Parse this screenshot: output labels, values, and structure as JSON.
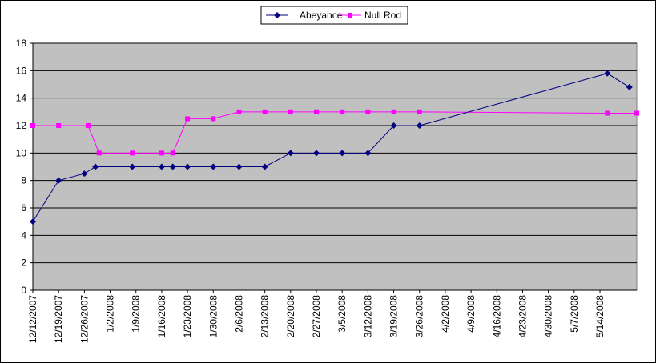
{
  "chart_data": {
    "type": "line",
    "legend_position": "top-center",
    "grid": "horizontal",
    "plot_background": "#C0C0C0",
    "ylim": [
      0,
      18
    ],
    "yticks": [
      0,
      2,
      4,
      6,
      8,
      10,
      12,
      14,
      16,
      18
    ],
    "xlim": [
      "12/12/2007",
      "5/24/2008"
    ],
    "xticks": [
      "12/12/2007",
      "12/19/2007",
      "12/26/2007",
      "1/2/2008",
      "1/9/2008",
      "1/16/2008",
      "1/23/2008",
      "1/30/2008",
      "2/6/2008",
      "2/13/2008",
      "2/20/2008",
      "2/27/2008",
      "3/5/2008",
      "3/12/2008",
      "3/19/2008",
      "3/26/2008",
      "4/2/2008",
      "4/9/2008",
      "4/16/2008",
      "4/23/2008",
      "4/30/2008",
      "5/7/2008",
      "5/14/2008"
    ],
    "series": [
      {
        "name": "Abeyance",
        "color": "#000080",
        "marker": "diamond",
        "points": [
          {
            "x": "12/12/2007",
            "y": 5
          },
          {
            "x": "12/19/2007",
            "y": 8
          },
          {
            "x": "12/26/2007",
            "y": 8.5
          },
          {
            "x": "12/29/2007",
            "y": 9
          },
          {
            "x": "1/8/2008",
            "y": 9
          },
          {
            "x": "1/16/2008",
            "y": 9
          },
          {
            "x": "1/19/2008",
            "y": 9
          },
          {
            "x": "1/23/2008",
            "y": 9
          },
          {
            "x": "1/30/2008",
            "y": 9
          },
          {
            "x": "2/6/2008",
            "y": 9
          },
          {
            "x": "2/13/2008",
            "y": 9
          },
          {
            "x": "2/20/2008",
            "y": 10
          },
          {
            "x": "2/27/2008",
            "y": 10
          },
          {
            "x": "3/5/2008",
            "y": 10
          },
          {
            "x": "3/12/2008",
            "y": 10
          },
          {
            "x": "3/19/2008",
            "y": 12
          },
          {
            "x": "3/26/2008",
            "y": 12
          },
          {
            "x": "5/16/2008",
            "y": 15.8
          },
          {
            "x": "5/22/2008",
            "y": 14.8
          }
        ]
      },
      {
        "name": "Null Rod",
        "color": "#FF00FF",
        "marker": "square",
        "points": [
          {
            "x": "12/12/2007",
            "y": 12
          },
          {
            "x": "12/19/2007",
            "y": 12
          },
          {
            "x": "12/27/2007",
            "y": 12
          },
          {
            "x": "12/30/2007",
            "y": 10
          },
          {
            "x": "1/8/2008",
            "y": 10
          },
          {
            "x": "1/16/2008",
            "y": 10
          },
          {
            "x": "1/19/2008",
            "y": 10
          },
          {
            "x": "1/23/2008",
            "y": 12.5
          },
          {
            "x": "1/30/2008",
            "y": 12.5
          },
          {
            "x": "2/6/2008",
            "y": 13
          },
          {
            "x": "2/13/2008",
            "y": 13
          },
          {
            "x": "2/20/2008",
            "y": 13
          },
          {
            "x": "2/27/2008",
            "y": 13
          },
          {
            "x": "3/5/2008",
            "y": 13
          },
          {
            "x": "3/12/2008",
            "y": 13
          },
          {
            "x": "3/19/2008",
            "y": 13
          },
          {
            "x": "3/26/2008",
            "y": 13
          },
          {
            "x": "5/16/2008",
            "y": 12.9
          },
          {
            "x": "5/24/2008",
            "y": 12.9
          }
        ]
      }
    ]
  }
}
